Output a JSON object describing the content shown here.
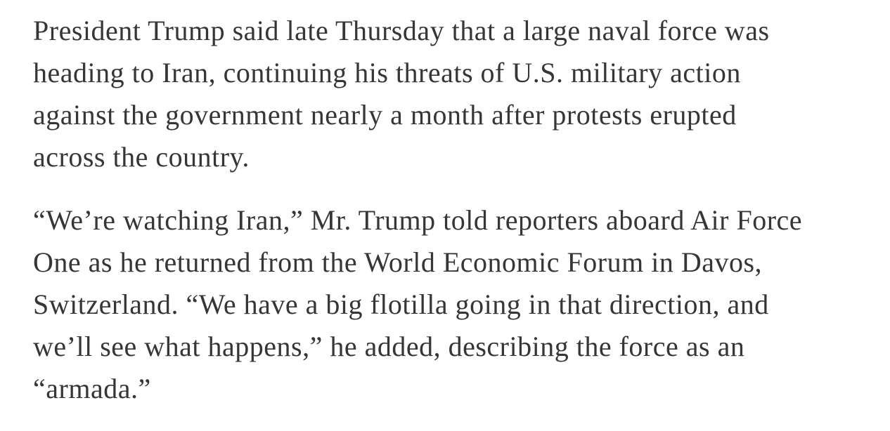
{
  "article": {
    "paragraphs": [
      {
        "lines": [
          "President Trump said late Thursday that a large naval force was",
          "heading to Iran, continuing his threats of U.S. military action",
          "against the government nearly a month after protests erupted",
          "across the country."
        ]
      },
      {
        "lines": [
          "“We’re watching Iran,” Mr. Trump told reporters aboard Air Force",
          "One as he returned from the World Economic Forum in Davos,",
          "Switzerland. “We have a big flotilla going in that direction, and",
          "we’ll see what happens,” he added, describing the force as an",
          "“armada.”"
        ]
      }
    ]
  },
  "colors": {
    "text": "#363636",
    "background": "#ffffff"
  }
}
